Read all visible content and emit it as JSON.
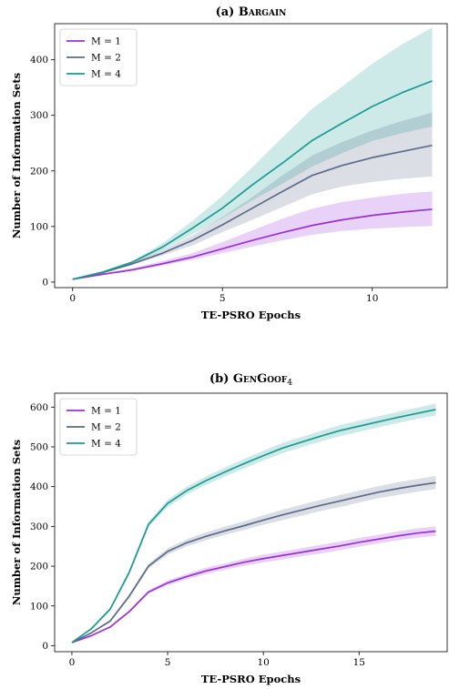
{
  "chart_data": [
    {
      "type": "line",
      "title_prefix": "(a)",
      "title": "Bargain",
      "title_suffix": "",
      "xlabel": "TE-PSRO Epochs",
      "ylabel": "Number of Information Sets",
      "xlim": [
        -0.6,
        12.5
      ],
      "ylim": [
        -10,
        465
      ],
      "xticks": [
        0,
        5,
        10
      ],
      "yticks": [
        0,
        100,
        200,
        300,
        400
      ],
      "legend": "top-left",
      "x": [
        0,
        1,
        2,
        3,
        4,
        5,
        6,
        7,
        8,
        9,
        10,
        11,
        12
      ],
      "series": [
        {
          "name": "M = 1",
          "color": "#9b30d9",
          "values": [
            5,
            14,
            22,
            33,
            45,
            60,
            75,
            89,
            102,
            112,
            120,
            126,
            131
          ],
          "lower": [
            5,
            13,
            20,
            30,
            40,
            52,
            64,
            75,
            85,
            92,
            96,
            99,
            101
          ],
          "upper": [
            5,
            15,
            25,
            38,
            52,
            72,
            93,
            114,
            132,
            144,
            152,
            159,
            163
          ]
        },
        {
          "name": "M = 2",
          "color": "#5c6b8a",
          "values": [
            5,
            17,
            33,
            52,
            75,
            103,
            133,
            163,
            192,
            210,
            224,
            235,
            246
          ],
          "lower": [
            5,
            16,
            31,
            48,
            66,
            90,
            112,
            135,
            158,
            172,
            180,
            186,
            190
          ],
          "upper": [
            5,
            18,
            36,
            57,
            84,
            117,
            153,
            192,
            228,
            252,
            273,
            290,
            305
          ]
        },
        {
          "name": "M = 4",
          "color": "#1a9a94",
          "values": [
            5,
            18,
            36,
            63,
            97,
            133,
            175,
            214,
            255,
            286,
            316,
            341,
            362
          ],
          "lower": [
            5,
            17,
            34,
            57,
            86,
            115,
            147,
            177,
            208,
            232,
            254,
            268,
            280
          ],
          "upper": [
            5,
            19,
            38,
            70,
            110,
            155,
            207,
            260,
            312,
            352,
            393,
            428,
            458
          ]
        }
      ]
    },
    {
      "type": "line",
      "title_prefix": "(b)",
      "title": "GenGoof",
      "title_suffix": "4",
      "xlabel": "TE-PSRO Epochs",
      "ylabel": "Number of Information Sets",
      "xlim": [
        -0.9,
        19.6
      ],
      "ylim": [
        -15,
        635
      ],
      "xticks": [
        0,
        5,
        10,
        15
      ],
      "yticks": [
        0,
        100,
        200,
        300,
        400,
        500,
        600
      ],
      "legend": "top-left",
      "x": [
        0,
        1,
        2,
        3,
        4,
        5,
        6,
        7,
        8,
        9,
        10,
        11,
        12,
        13,
        14,
        15,
        16,
        17,
        18,
        19
      ],
      "series": [
        {
          "name": "M = 1",
          "color": "#9b30d9",
          "values": [
            8,
            25,
            47,
            86,
            135,
            158,
            174,
            188,
            199,
            210,
            219,
            227,
            235,
            243,
            251,
            260,
            268,
            276,
            283,
            288
          ],
          "lower": [
            8,
            24,
            45,
            83,
            131,
            152,
            167,
            180,
            191,
            201,
            209,
            217,
            225,
            232,
            240,
            249,
            257,
            265,
            271,
            276
          ],
          "upper": [
            8,
            26,
            49,
            89,
            139,
            164,
            181,
            196,
            207,
            219,
            229,
            237,
            245,
            254,
            262,
            271,
            279,
            287,
            295,
            300
          ]
        },
        {
          "name": "M = 2",
          "color": "#5c6b8a",
          "values": [
            8,
            32,
            62,
            125,
            200,
            237,
            259,
            275,
            289,
            302,
            316,
            329,
            341,
            353,
            364,
            375,
            386,
            395,
            403,
            410
          ],
          "lower": [
            8,
            31,
            59,
            120,
            194,
            229,
            250,
            265,
            279,
            291,
            304,
            316,
            327,
            339,
            349,
            360,
            371,
            379,
            387,
            394
          ],
          "upper": [
            8,
            33,
            65,
            130,
            206,
            245,
            268,
            285,
            300,
            313,
            328,
            342,
            355,
            367,
            379,
            390,
            401,
            411,
            419,
            427
          ]
        },
        {
          "name": "M = 4",
          "color": "#1a9a94",
          "values": [
            8,
            42,
            92,
            185,
            305,
            358,
            390,
            415,
            437,
            458,
            478,
            497,
            512,
            527,
            541,
            552,
            563,
            574,
            584,
            594
          ],
          "lower": [
            8,
            40,
            88,
            179,
            298,
            349,
            380,
            404,
            426,
            446,
            466,
            484,
            499,
            514,
            527,
            538,
            549,
            560,
            570,
            579
          ],
          "upper": [
            8,
            44,
            96,
            191,
            312,
            367,
            400,
            426,
            448,
            470,
            490,
            510,
            525,
            540,
            555,
            566,
            577,
            588,
            598,
            609
          ]
        }
      ]
    }
  ]
}
